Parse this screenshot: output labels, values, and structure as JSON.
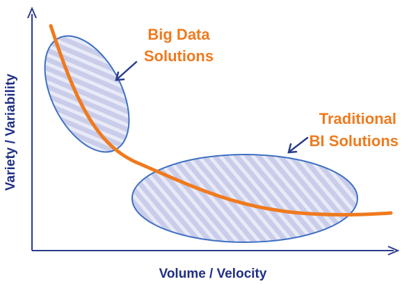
{
  "axes": {
    "x_label": "Volume / Velocity",
    "y_label": "Variety / Variability"
  },
  "annotations": {
    "big_data": [
      "Big Data",
      "Solutions"
    ],
    "traditional": [
      "Traditional",
      "BI Solutions"
    ]
  },
  "colors": {
    "axis": "#2a3a8c",
    "axis_text": "#1f2f84",
    "curve": "#f07a1e",
    "annotation_text": "#f07a1e",
    "region_fill": "#c9cdea",
    "region_stripe": "#e8eaf7",
    "region_stroke": "#3d6fc2",
    "arrow": "#2a3a8c"
  }
}
